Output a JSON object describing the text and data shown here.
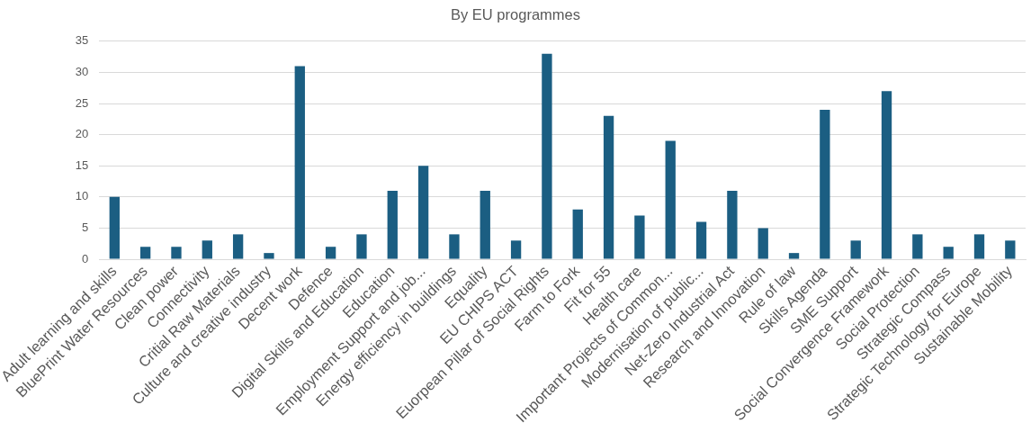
{
  "chart_data": {
    "type": "bar",
    "title": "By EU programmes",
    "categories": [
      "Adult learning and skills",
      "BluePrint Water Resources",
      "Clean power",
      "Connectivity",
      "Critial Raw Materials",
      "Culture and creative industry",
      "Decent work",
      "Defence",
      "Digital Skills and Education",
      "Education",
      "Employment Support and job...",
      "Energy efficiency in buildings",
      "Equality",
      "EU CHIPS ACT",
      "Euorpean Pillar of Social Rights",
      "Farm to Fork",
      "Fit for 55",
      "Health care",
      "Important Projects of Common...",
      "Modernisation of public...",
      "Net-Zero Industrial Act",
      "Research and Innovation",
      "Rule of law",
      "Skills Agenda",
      "SME Support",
      "Social Convergence Framework",
      "Social Protection",
      "Strategic Compass",
      "Strategic Technology for Europe",
      "Sustainable Mobility"
    ],
    "values": [
      10,
      2,
      2,
      3,
      4,
      1,
      31,
      2,
      4,
      11,
      15,
      4,
      11,
      3,
      33,
      8,
      23,
      7,
      19,
      6,
      11,
      5,
      1,
      24,
      3,
      27,
      4,
      2,
      4,
      3
    ],
    "color": "#1b5e82",
    "ylim": [
      0,
      35
    ],
    "yticks": [
      0,
      5,
      10,
      15,
      20,
      25,
      30,
      35
    ],
    "grid": "y"
  }
}
